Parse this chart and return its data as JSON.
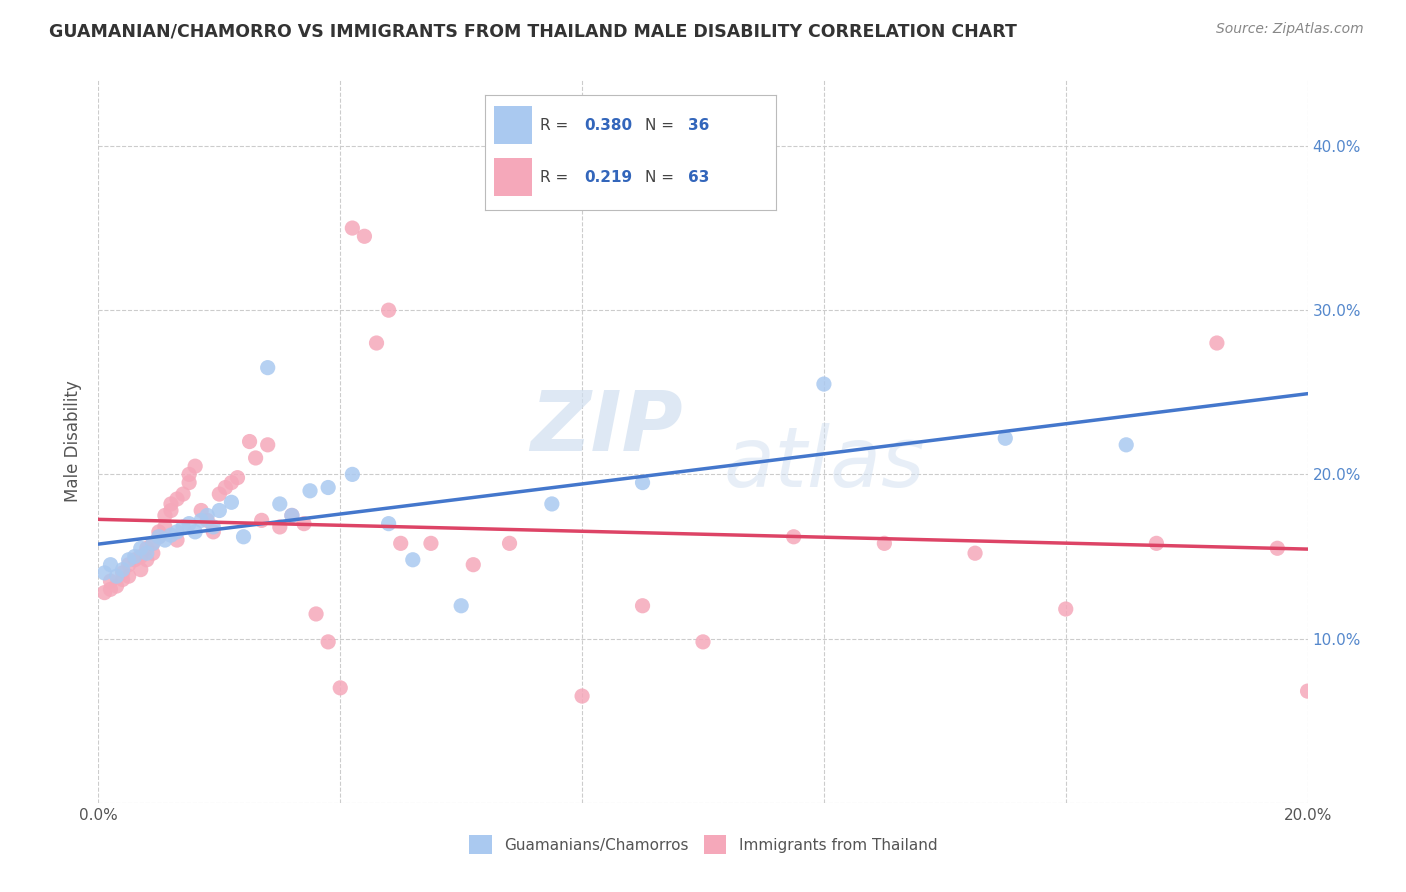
{
  "title": "GUAMANIAN/CHAMORRO VS IMMIGRANTS FROM THAILAND MALE DISABILITY CORRELATION CHART",
  "source": "Source: ZipAtlas.com",
  "ylabel": "Male Disability",
  "xlim": [
    0.0,
    0.2
  ],
  "ylim": [
    0.0,
    0.44
  ],
  "xticks": [
    0.0,
    0.04,
    0.08,
    0.12,
    0.16,
    0.2
  ],
  "xtick_labels": [
    "0.0%",
    "",
    "",
    "",
    "",
    "20.0%"
  ],
  "yticks": [
    0.0,
    0.1,
    0.2,
    0.3,
    0.4
  ],
  "ytick_labels": [
    "",
    "10.0%",
    "20.0%",
    "30.0%",
    "40.0%"
  ],
  "blue_color": "#aac9f0",
  "pink_color": "#f5a8ba",
  "blue_line_color": "#4477cc",
  "pink_line_color": "#dd4466",
  "legend_R_color": "#3366bb",
  "background_color": "#ffffff",
  "grid_color": "#cccccc",
  "title_color": "#333333",
  "watermark_zip": "ZIP",
  "watermark_atlas": "atlas",
  "legend1_R": "0.380",
  "legend1_N": "36",
  "legend2_R": "0.219",
  "legend2_N": "63",
  "legend1_label": "Guamanians/Chamorros",
  "legend2_label": "Immigrants from Thailand",
  "blue_x": [
    0.001,
    0.002,
    0.003,
    0.004,
    0.005,
    0.006,
    0.007,
    0.008,
    0.009,
    0.01,
    0.011,
    0.012,
    0.013,
    0.014,
    0.015,
    0.016,
    0.017,
    0.018,
    0.019,
    0.02,
    0.022,
    0.024,
    0.028,
    0.03,
    0.032,
    0.035,
    0.038,
    0.042,
    0.048,
    0.052,
    0.06,
    0.075,
    0.09,
    0.12,
    0.15,
    0.17
  ],
  "blue_y": [
    0.14,
    0.145,
    0.138,
    0.142,
    0.148,
    0.15,
    0.155,
    0.152,
    0.158,
    0.162,
    0.16,
    0.163,
    0.165,
    0.168,
    0.17,
    0.165,
    0.172,
    0.175,
    0.168,
    0.178,
    0.183,
    0.162,
    0.265,
    0.182,
    0.175,
    0.19,
    0.192,
    0.2,
    0.17,
    0.148,
    0.12,
    0.182,
    0.195,
    0.255,
    0.222,
    0.218
  ],
  "pink_x": [
    0.001,
    0.002,
    0.002,
    0.003,
    0.004,
    0.004,
    0.005,
    0.005,
    0.006,
    0.007,
    0.007,
    0.008,
    0.008,
    0.009,
    0.009,
    0.01,
    0.01,
    0.011,
    0.011,
    0.012,
    0.012,
    0.013,
    0.013,
    0.014,
    0.015,
    0.015,
    0.016,
    0.017,
    0.018,
    0.019,
    0.02,
    0.021,
    0.022,
    0.023,
    0.025,
    0.026,
    0.027,
    0.028,
    0.03,
    0.032,
    0.034,
    0.036,
    0.038,
    0.04,
    0.042,
    0.044,
    0.046,
    0.048,
    0.05,
    0.055,
    0.062,
    0.068,
    0.08,
    0.09,
    0.1,
    0.115,
    0.13,
    0.145,
    0.16,
    0.175,
    0.185,
    0.195,
    0.2
  ],
  "pink_y": [
    0.128,
    0.13,
    0.135,
    0.132,
    0.14,
    0.136,
    0.138,
    0.145,
    0.148,
    0.142,
    0.15,
    0.148,
    0.155,
    0.152,
    0.158,
    0.162,
    0.165,
    0.175,
    0.168,
    0.178,
    0.182,
    0.16,
    0.185,
    0.188,
    0.2,
    0.195,
    0.205,
    0.178,
    0.172,
    0.165,
    0.188,
    0.192,
    0.195,
    0.198,
    0.22,
    0.21,
    0.172,
    0.218,
    0.168,
    0.175,
    0.17,
    0.115,
    0.098,
    0.07,
    0.35,
    0.345,
    0.28,
    0.3,
    0.158,
    0.158,
    0.145,
    0.158,
    0.065,
    0.12,
    0.098,
    0.162,
    0.158,
    0.152,
    0.118,
    0.158,
    0.28,
    0.155,
    0.068
  ]
}
